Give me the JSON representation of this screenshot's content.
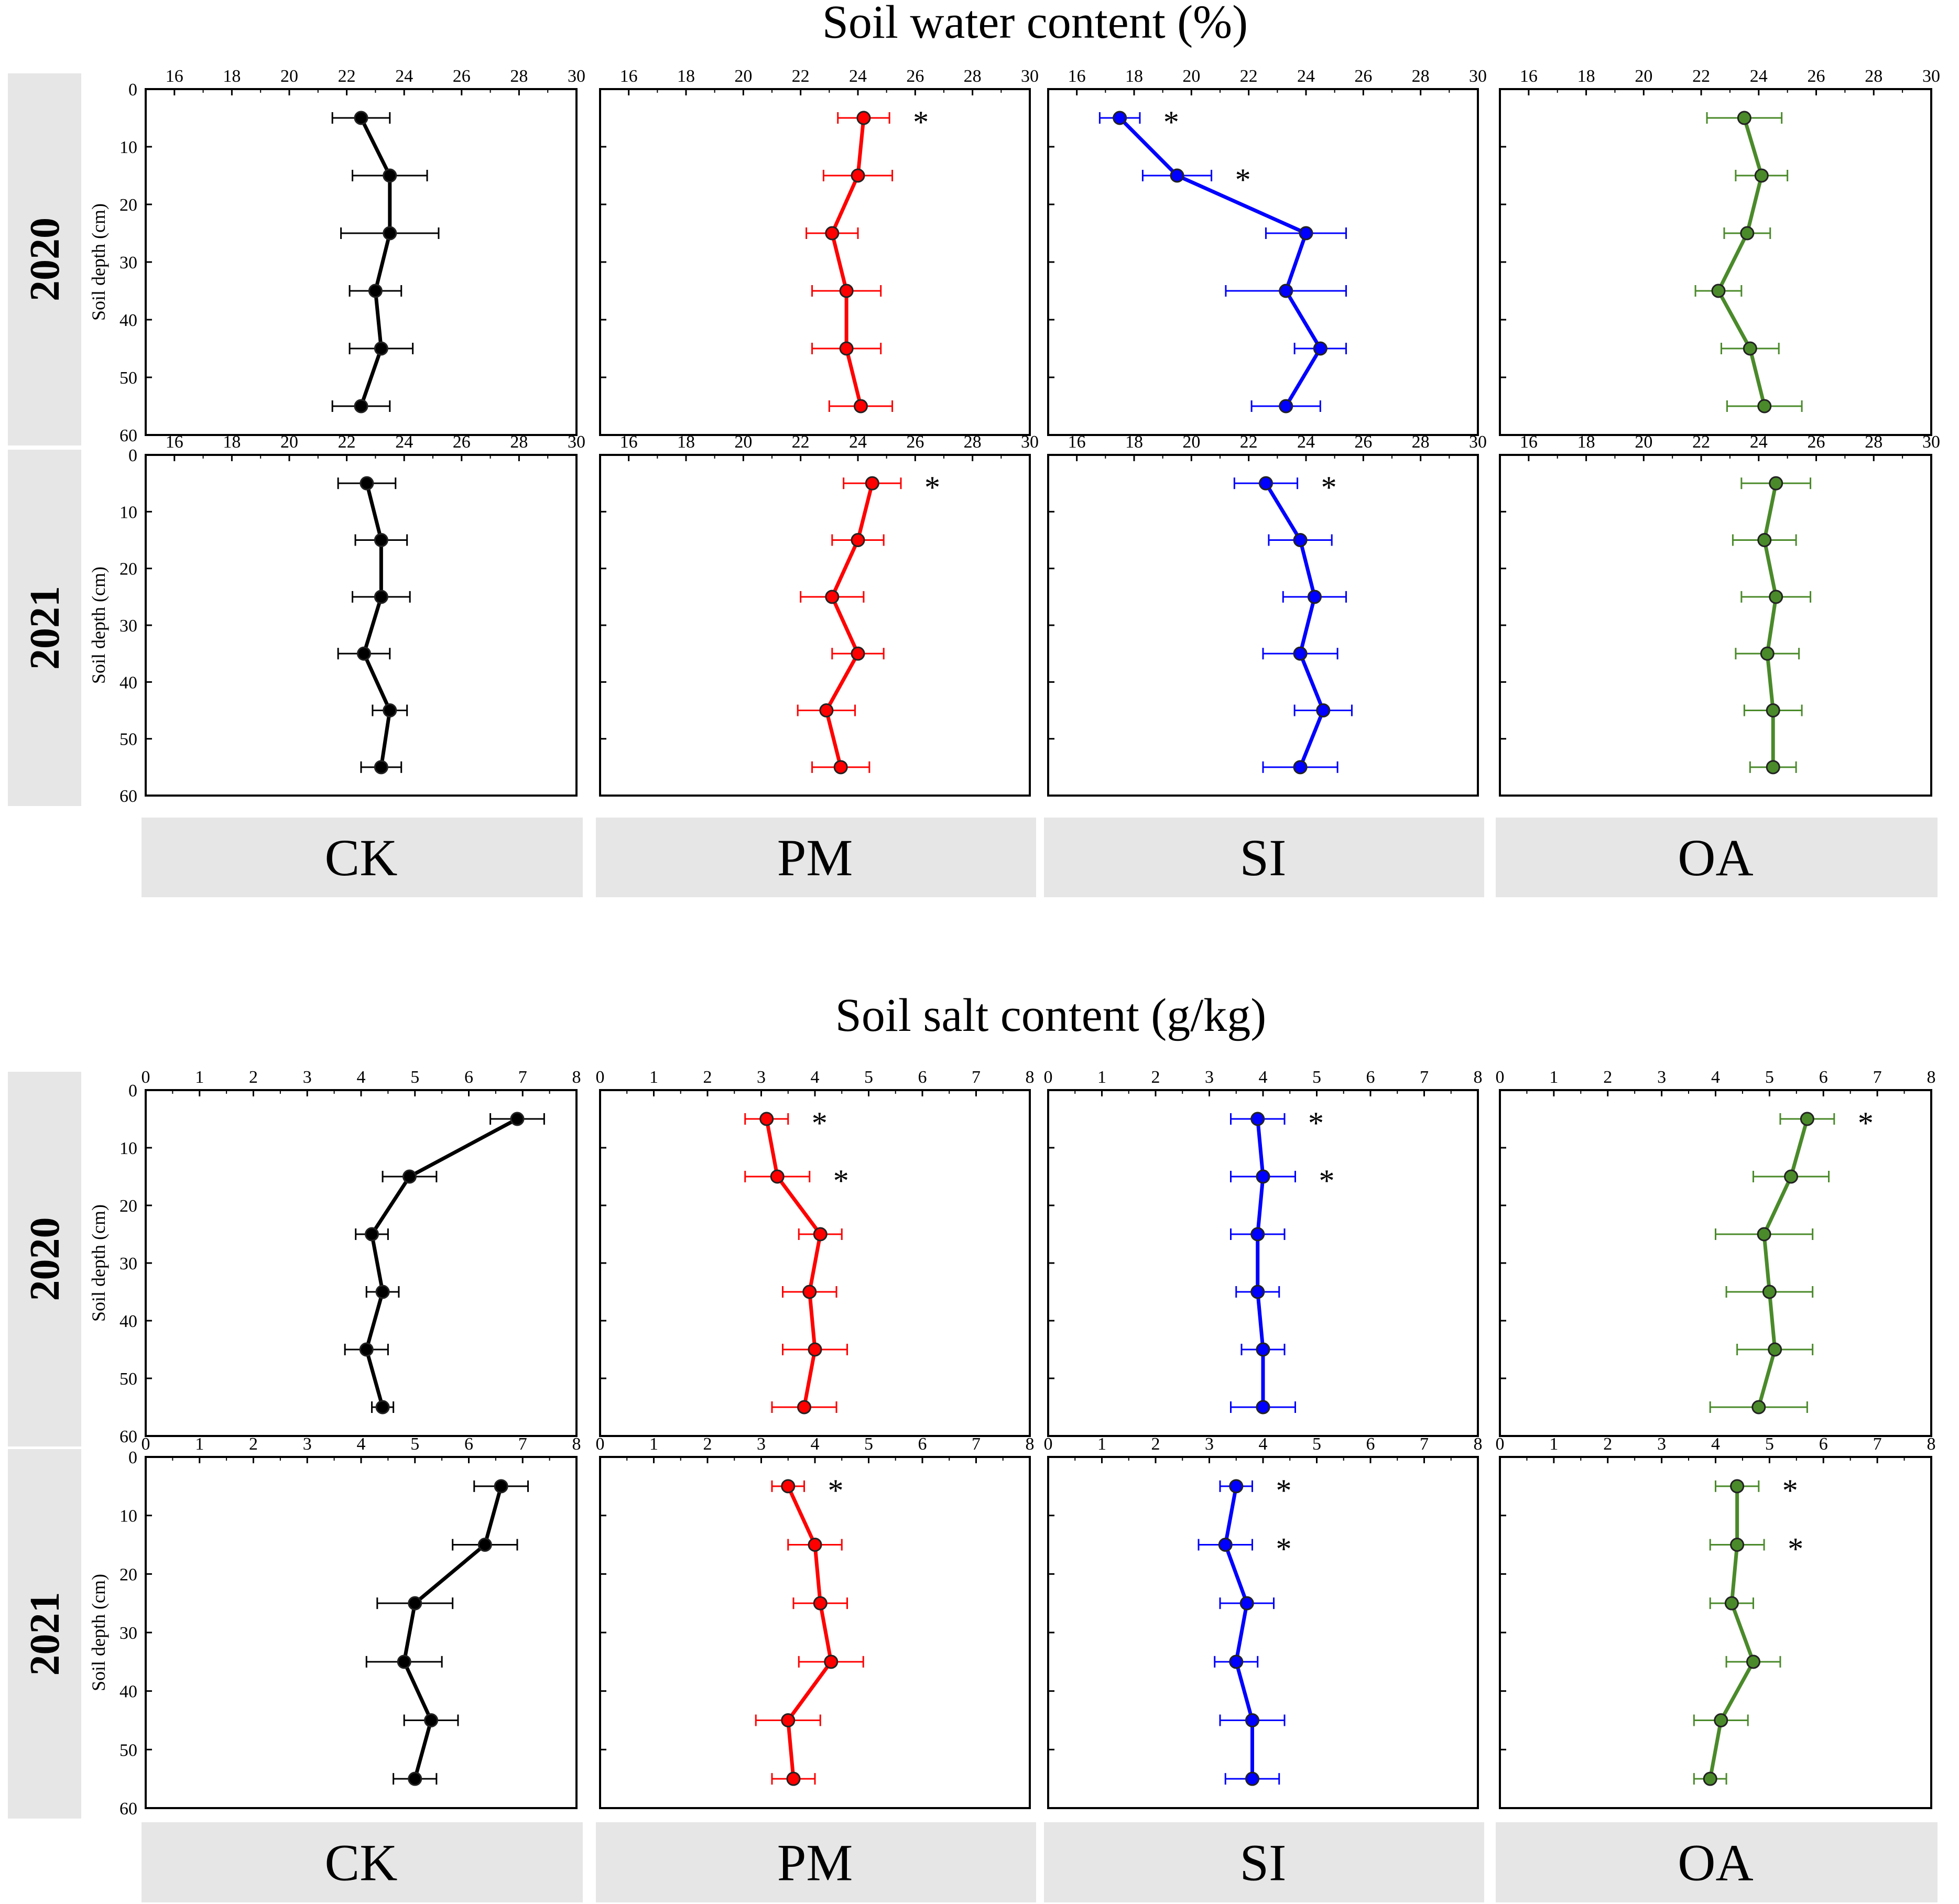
{
  "titles": {
    "water": "Soil water content (%)",
    "salt": "Soil salt content (g/kg)"
  },
  "years": [
    "2020",
    "2021"
  ],
  "treatments": [
    "CK",
    "PM",
    "SI",
    "OA"
  ],
  "colors": {
    "CK": "#000000",
    "PM": "#ff0000",
    "SI": "#0000ff",
    "OA": "#4a8a2a"
  },
  "panel_fill": "#e6e6e6",
  "significance_marker": "*",
  "chart_data": [
    {
      "type": "line",
      "title": "Soil water content (%)",
      "ylabel": "Soil depth (cm)",
      "xlim": [
        15,
        30
      ],
      "xticks": [
        "16",
        "18",
        "20",
        "22",
        "24",
        "26",
        "28",
        "30"
      ],
      "ylim": [
        0,
        60
      ],
      "yticks": [
        "0",
        "10",
        "20",
        "30",
        "40",
        "50",
        "60"
      ],
      "y_inverted": true,
      "x_axis_position": "top",
      "grid": false,
      "depths": [
        5,
        15,
        25,
        35,
        45,
        55
      ],
      "series": [
        {
          "year": "2020",
          "name": "CK",
          "values": [
            22.5,
            23.5,
            23.5,
            23.0,
            23.2,
            22.5
          ],
          "errors": [
            1.0,
            1.3,
            1.7,
            0.9,
            1.1,
            1.0
          ],
          "significant": [
            false,
            false,
            false,
            false,
            false,
            false
          ]
        },
        {
          "year": "2020",
          "name": "PM",
          "values": [
            24.2,
            24.0,
            23.1,
            23.6,
            23.6,
            24.1
          ],
          "errors": [
            0.9,
            1.2,
            0.9,
            1.2,
            1.2,
            1.1
          ],
          "significant": [
            true,
            false,
            false,
            false,
            false,
            false
          ]
        },
        {
          "year": "2020",
          "name": "SI",
          "values": [
            17.5,
            19.5,
            24.0,
            23.3,
            24.5,
            23.3
          ],
          "errors": [
            0.7,
            1.2,
            1.4,
            2.1,
            0.9,
            1.2
          ],
          "significant": [
            true,
            true,
            false,
            false,
            false,
            false
          ]
        },
        {
          "year": "2020",
          "name": "OA",
          "values": [
            23.5,
            24.1,
            23.6,
            22.6,
            23.7,
            24.2
          ],
          "errors": [
            1.3,
            0.9,
            0.8,
            0.8,
            1.0,
            1.3
          ],
          "significant": [
            false,
            false,
            false,
            false,
            false,
            false
          ]
        },
        {
          "year": "2021",
          "name": "CK",
          "values": [
            22.7,
            23.2,
            23.2,
            22.6,
            23.5,
            23.2
          ],
          "errors": [
            1.0,
            0.9,
            1.0,
            0.9,
            0.6,
            0.7
          ],
          "significant": [
            false,
            false,
            false,
            false,
            false,
            false
          ]
        },
        {
          "year": "2021",
          "name": "PM",
          "values": [
            24.5,
            24.0,
            23.1,
            24.0,
            22.9,
            23.4
          ],
          "errors": [
            1.0,
            0.9,
            1.1,
            0.9,
            1.0,
            1.0
          ],
          "significant": [
            true,
            false,
            false,
            false,
            false,
            false
          ]
        },
        {
          "year": "2021",
          "name": "SI",
          "values": [
            22.6,
            23.8,
            24.3,
            23.8,
            24.6,
            23.8
          ],
          "errors": [
            1.1,
            1.1,
            1.1,
            1.3,
            1.0,
            1.3
          ],
          "significant": [
            true,
            false,
            false,
            false,
            false,
            false
          ]
        },
        {
          "year": "2021",
          "name": "OA",
          "values": [
            24.6,
            24.2,
            24.6,
            24.3,
            24.5,
            24.5
          ],
          "errors": [
            1.2,
            1.1,
            1.2,
            1.1,
            1.0,
            0.8
          ],
          "significant": [
            false,
            false,
            false,
            false,
            false,
            false
          ]
        }
      ]
    },
    {
      "type": "line",
      "title": "Soil salt content (g/kg)",
      "ylabel": "Soil depth (cm)",
      "xlim": [
        0,
        8
      ],
      "xticks": [
        "0",
        "1",
        "2",
        "3",
        "4",
        "5",
        "6",
        "7",
        "8"
      ],
      "ylim": [
        0,
        60
      ],
      "yticks": [
        "0",
        "10",
        "20",
        "30",
        "40",
        "50",
        "60"
      ],
      "y_inverted": true,
      "x_axis_position": "top",
      "grid": false,
      "depths": [
        5,
        15,
        25,
        35,
        45,
        55
      ],
      "series": [
        {
          "year": "2020",
          "name": "CK",
          "values": [
            6.9,
            4.9,
            4.2,
            4.4,
            4.1,
            4.4
          ],
          "errors": [
            0.5,
            0.5,
            0.3,
            0.3,
            0.4,
            0.2
          ],
          "significant": [
            false,
            false,
            false,
            false,
            false,
            false
          ]
        },
        {
          "year": "2020",
          "name": "PM",
          "values": [
            3.1,
            3.3,
            4.1,
            3.9,
            4.0,
            3.8
          ],
          "errors": [
            0.4,
            0.6,
            0.4,
            0.5,
            0.6,
            0.6
          ],
          "significant": [
            true,
            true,
            false,
            false,
            false,
            false
          ]
        },
        {
          "year": "2020",
          "name": "SI",
          "values": [
            3.9,
            4.0,
            3.9,
            3.9,
            4.0,
            4.0
          ],
          "errors": [
            0.5,
            0.6,
            0.5,
            0.4,
            0.4,
            0.6
          ],
          "significant": [
            true,
            true,
            false,
            false,
            false,
            false
          ]
        },
        {
          "year": "2020",
          "name": "OA",
          "values": [
            5.7,
            5.4,
            4.9,
            5.0,
            5.1,
            4.8
          ],
          "errors": [
            0.5,
            0.7,
            0.9,
            0.8,
            0.7,
            0.9
          ],
          "significant": [
            true,
            false,
            false,
            false,
            false,
            false
          ]
        },
        {
          "year": "2021",
          "name": "CK",
          "values": [
            6.6,
            6.3,
            5.0,
            4.8,
            5.3,
            5.0
          ],
          "errors": [
            0.5,
            0.6,
            0.7,
            0.7,
            0.5,
            0.4
          ],
          "significant": [
            false,
            false,
            false,
            false,
            false,
            false
          ]
        },
        {
          "year": "2021",
          "name": "PM",
          "values": [
            3.5,
            4.0,
            4.1,
            4.3,
            3.5,
            3.6
          ],
          "errors": [
            0.3,
            0.5,
            0.5,
            0.6,
            0.6,
            0.4
          ],
          "significant": [
            true,
            false,
            false,
            false,
            false,
            false
          ]
        },
        {
          "year": "2021",
          "name": "SI",
          "values": [
            3.5,
            3.3,
            3.7,
            3.5,
            3.8,
            3.8
          ],
          "errors": [
            0.3,
            0.5,
            0.5,
            0.4,
            0.6,
            0.5
          ],
          "significant": [
            true,
            true,
            false,
            false,
            false,
            false
          ]
        },
        {
          "year": "2021",
          "name": "OA",
          "values": [
            4.4,
            4.4,
            4.3,
            4.7,
            4.1,
            3.9
          ],
          "errors": [
            0.4,
            0.5,
            0.4,
            0.5,
            0.5,
            0.3
          ],
          "significant": [
            true,
            true,
            false,
            false,
            false,
            false
          ]
        }
      ]
    }
  ]
}
